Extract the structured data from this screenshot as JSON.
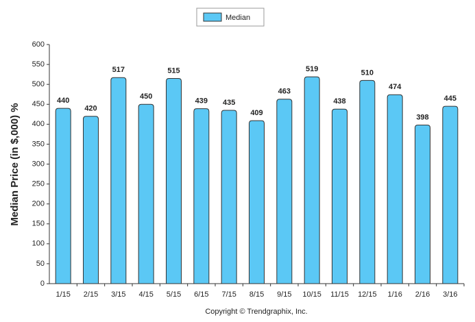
{
  "chart_data": {
    "type": "bar",
    "y_label": "Median Price (in $,000) %",
    "x_label": "Copyright © Trendgraphix, Inc.",
    "categories": [
      "1/15",
      "2/15",
      "3/15",
      "4/15",
      "5/15",
      "6/15",
      "7/15",
      "8/15",
      "9/15",
      "10/15",
      "11/15",
      "12/15",
      "1/16",
      "2/16",
      "3/16"
    ],
    "series": [
      {
        "name": "Median",
        "color": "#5bc8f5",
        "values": [
          440,
          420,
          517,
          450,
          515,
          439,
          435,
          409,
          463,
          519,
          438,
          510,
          474,
          398,
          445
        ]
      }
    ],
    "ylim": [
      0,
      600
    ],
    "yticks": [
      0,
      50,
      100,
      150,
      200,
      250,
      300,
      350,
      400,
      450,
      500,
      550,
      600
    ],
    "grid": false,
    "legend": "top"
  }
}
